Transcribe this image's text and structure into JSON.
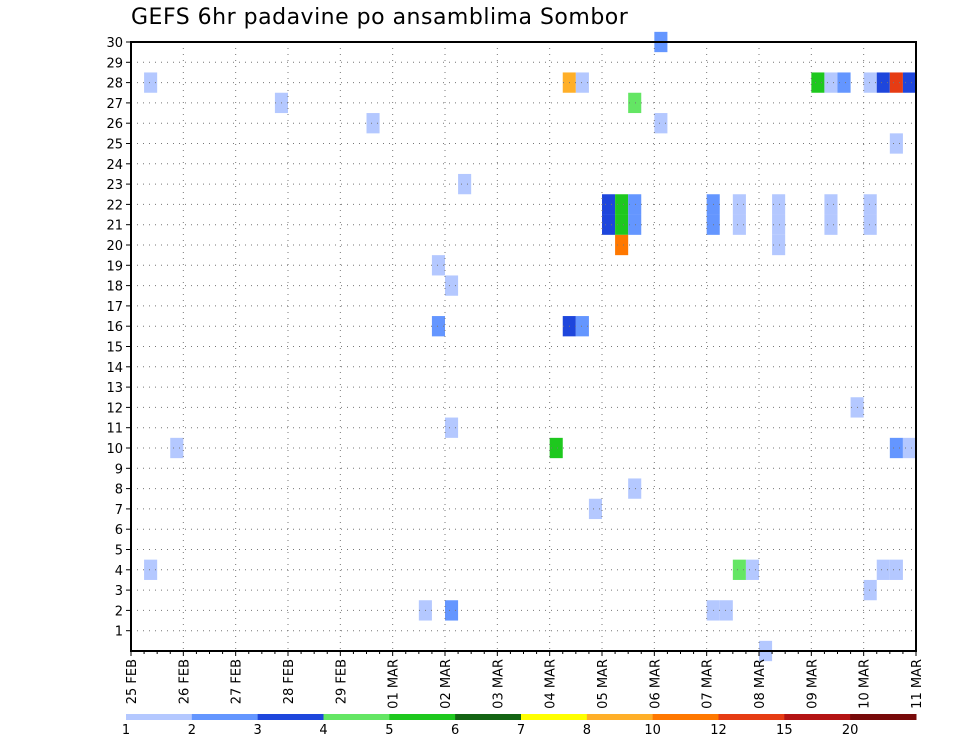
{
  "chart_data": {
    "type": "heatmap",
    "title": "GEFS 6hr padavine po ansamblima Sombor",
    "xlabel": "",
    "ylabel": "",
    "x_tick_labels": [
      "25 FEB",
      "26 FEB",
      "27 FEB",
      "28 FEB",
      "29 FEB",
      "01 MAR",
      "02 MAR",
      "03 MAR",
      "04 MAR",
      "05 MAR",
      "06 MAR",
      "07 MAR",
      "08 MAR",
      "09 MAR",
      "10 MAR",
      "11 MAR"
    ],
    "y_tick_labels": [
      "1",
      "2",
      "3",
      "4",
      "5",
      "6",
      "7",
      "8",
      "9",
      "10",
      "11",
      "12",
      "13",
      "14",
      "15",
      "16",
      "17",
      "18",
      "19",
      "20",
      "21",
      "22",
      "23",
      "24",
      "25",
      "26",
      "27",
      "28",
      "29",
      "30"
    ],
    "xlim_days": [
      0,
      15
    ],
    "ylim": [
      0,
      30
    ],
    "grid": true,
    "legend": {
      "position": "bottom",
      "bins": [
        {
          "label": "1",
          "color": "#b4c8ff"
        },
        {
          "label": "2",
          "color": "#6496ff"
        },
        {
          "label": "3",
          "color": "#1e46dc"
        },
        {
          "label": "4",
          "color": "#64e664"
        },
        {
          "label": "5",
          "color": "#1ec81e"
        },
        {
          "label": "6",
          "color": "#146414"
        },
        {
          "label": "7",
          "color": "#ffff00"
        },
        {
          "label": "8",
          "color": "#ffaf28"
        },
        {
          "label": "10",
          "color": "#ff7800"
        },
        {
          "label": "12",
          "color": "#e63c14"
        },
        {
          "label": "15",
          "color": "#b41414"
        },
        {
          "label": "20",
          "color": "#780a0a"
        }
      ]
    },
    "cells_note": "each cell: member (y), time in days since 25 FEB 00Z (x), precipitation class index c (0-based into legend bins)",
    "cells": [
      {
        "x": 0.25,
        "y": 28,
        "c": 0
      },
      {
        "x": 0.25,
        "y": 4,
        "c": 0
      },
      {
        "x": 0.75,
        "y": 10,
        "c": 0
      },
      {
        "x": 2.75,
        "y": 27,
        "c": 0
      },
      {
        "x": 4.5,
        "y": 26,
        "c": 0
      },
      {
        "x": 5.5,
        "y": 2,
        "c": 0
      },
      {
        "x": 5.75,
        "y": 19,
        "c": 0
      },
      {
        "x": 5.75,
        "y": 16,
        "c": 1
      },
      {
        "x": 6.0,
        "y": 18,
        "c": 0
      },
      {
        "x": 6.0,
        "y": 11,
        "c": 0
      },
      {
        "x": 6.0,
        "y": 2,
        "c": 1
      },
      {
        "x": 6.25,
        "y": 23,
        "c": 0
      },
      {
        "x": 8.0,
        "y": 10,
        "c": 4
      },
      {
        "x": 8.25,
        "y": 28,
        "c": 7
      },
      {
        "x": 8.25,
        "y": 16,
        "c": 2
      },
      {
        "x": 8.5,
        "y": 28,
        "c": 0
      },
      {
        "x": 8.5,
        "y": 16,
        "c": 1
      },
      {
        "x": 8.75,
        "y": 7,
        "c": 0
      },
      {
        "x": 9.0,
        "y": 22,
        "c": 2
      },
      {
        "x": 9.0,
        "y": 21,
        "c": 2
      },
      {
        "x": 9.25,
        "y": 22,
        "c": 4
      },
      {
        "x": 9.25,
        "y": 21,
        "c": 4
      },
      {
        "x": 9.25,
        "y": 20,
        "c": 8
      },
      {
        "x": 9.5,
        "y": 27,
        "c": 3
      },
      {
        "x": 9.5,
        "y": 22,
        "c": 1
      },
      {
        "x": 9.5,
        "y": 21,
        "c": 1
      },
      {
        "x": 9.5,
        "y": 8,
        "c": 0
      },
      {
        "x": 10.0,
        "y": 30,
        "c": 1
      },
      {
        "x": 10.0,
        "y": 26,
        "c": 0
      },
      {
        "x": 11.0,
        "y": 22,
        "c": 1
      },
      {
        "x": 11.0,
        "y": 21,
        "c": 1
      },
      {
        "x": 11.0,
        "y": 2,
        "c": 0
      },
      {
        "x": 11.25,
        "y": 2,
        "c": 0
      },
      {
        "x": 11.5,
        "y": 22,
        "c": 0
      },
      {
        "x": 11.5,
        "y": 21,
        "c": 0
      },
      {
        "x": 11.5,
        "y": 4,
        "c": 3
      },
      {
        "x": 11.75,
        "y": 4,
        "c": 0
      },
      {
        "x": 12.0,
        "y": 0,
        "c": 0
      },
      {
        "x": 12.25,
        "y": 22,
        "c": 0
      },
      {
        "x": 12.25,
        "y": 21,
        "c": 0
      },
      {
        "x": 12.25,
        "y": 20,
        "c": 0
      },
      {
        "x": 13.0,
        "y": 28,
        "c": 4
      },
      {
        "x": 13.25,
        "y": 28,
        "c": 0
      },
      {
        "x": 13.25,
        "y": 22,
        "c": 0
      },
      {
        "x": 13.25,
        "y": 21,
        "c": 0
      },
      {
        "x": 13.5,
        "y": 28,
        "c": 1
      },
      {
        "x": 13.75,
        "y": 12,
        "c": 0
      },
      {
        "x": 14.0,
        "y": 28,
        "c": 0
      },
      {
        "x": 14.0,
        "y": 22,
        "c": 0
      },
      {
        "x": 14.0,
        "y": 21,
        "c": 0
      },
      {
        "x": 14.0,
        "y": 3,
        "c": 0
      },
      {
        "x": 14.25,
        "y": 28,
        "c": 2
      },
      {
        "x": 14.25,
        "y": 4,
        "c": 0
      },
      {
        "x": 14.5,
        "y": 28,
        "c": 9
      },
      {
        "x": 14.5,
        "y": 25,
        "c": 0
      },
      {
        "x": 14.5,
        "y": 10,
        "c": 1
      },
      {
        "x": 14.5,
        "y": 4,
        "c": 0
      },
      {
        "x": 14.75,
        "y": 28,
        "c": 2
      },
      {
        "x": 14.75,
        "y": 10,
        "c": 0
      }
    ]
  }
}
